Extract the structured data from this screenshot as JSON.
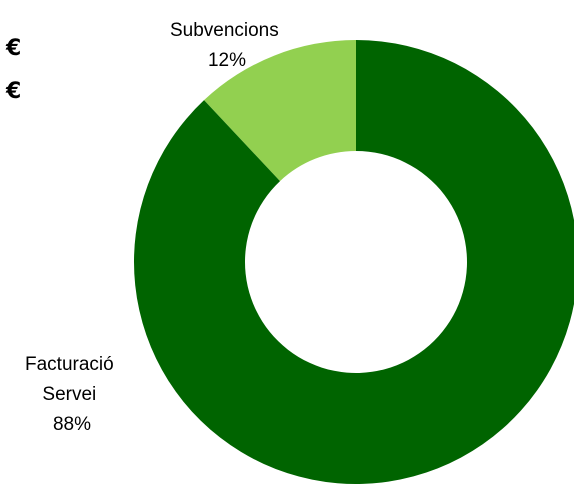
{
  "side_symbols": [
    "€",
    "€"
  ],
  "chart_data": {
    "type": "pie",
    "donut": true,
    "title": "",
    "categories": [
      "Subvencions",
      "Facturació Servei"
    ],
    "values": [
      12,
      88
    ],
    "colors": [
      "#92D050",
      "#006400"
    ],
    "labels": [
      {
        "lines": [
          "Subvencions",
          "12%"
        ]
      },
      {
        "lines": [
          "Facturació",
          "Servei",
          "88%"
        ]
      }
    ]
  }
}
